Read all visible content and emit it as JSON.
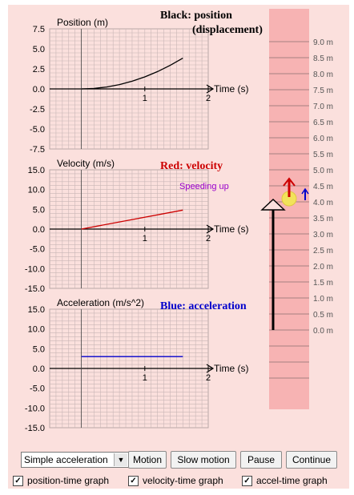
{
  "graphs": {
    "position": {
      "title": "Position (m)",
      "y_ticks": [
        "7.5",
        "5.0",
        "2.5",
        "0.0",
        "-2.5",
        "-5.0",
        "-7.5"
      ],
      "x_label": "Time (s)",
      "x_ticks": [
        "1",
        "2"
      ],
      "legend": [
        "Black: position",
        "(displacement)"
      ],
      "legend_color": "#000000",
      "line_color": "#000000"
    },
    "velocity": {
      "title": "Velocity (m/s)",
      "y_ticks": [
        "15.0",
        "10.0",
        "5.0",
        "0.0",
        "-5.0",
        "-10.0",
        "-15.0"
      ],
      "x_label": "Time (s)",
      "x_ticks": [
        "1",
        "2"
      ],
      "legend": [
        "Red: velocity"
      ],
      "legend_color": "#cc0000",
      "line_color": "#cc0000",
      "status": "Speeding up",
      "status_color": "#9900cc"
    },
    "acceleration": {
      "title": "Acceleration (m/s^2)",
      "y_ticks": [
        "15.0",
        "10.0",
        "5.0",
        "0.0",
        "-5.0",
        "-10.0",
        "-15.0"
      ],
      "x_label": "Time (s)",
      "x_ticks": [
        "1",
        "2"
      ],
      "legend": [
        "Blue: acceleration"
      ],
      "legend_color": "#0000cc",
      "line_color": "#0000cc"
    }
  },
  "track": {
    "scale_labels": [
      "9.0 m",
      "8.5 m",
      "8.0 m",
      "7.5 m",
      "7.0 m",
      "6.5 m",
      "6.0 m",
      "5.5 m",
      "5.0 m",
      "4.5 m",
      "4.0 m",
      "3.5 m",
      "3.0 m",
      "2.5 m",
      "2.0 m",
      "1.5 m",
      "1.0 m",
      "0.5 m",
      "0.0 m"
    ],
    "ball_position_m": 4.2,
    "start_position_m": 0.0,
    "ball_color": "#f2e25a",
    "velocity_arrow_color": "#cc0000",
    "accel_arrow_color": "#0000cc"
  },
  "chart_data": [
    {
      "type": "line",
      "title": "Position (m)",
      "xlabel": "Time (s)",
      "ylabel": "Position (m)",
      "xlim": [
        -0.5,
        2.0
      ],
      "ylim": [
        -7.5,
        7.5
      ],
      "series": [
        {
          "x": [
            0.0,
            0.2,
            0.4,
            0.6,
            0.8,
            1.0,
            1.2,
            1.4,
            1.6
          ],
          "y": [
            0.0,
            0.06,
            0.24,
            0.54,
            0.96,
            1.5,
            2.16,
            2.94,
            3.84
          ]
        }
      ]
    },
    {
      "type": "line",
      "title": "Velocity (m/s)",
      "xlabel": "Time (s)",
      "ylabel": "Velocity (m/s)",
      "xlim": [
        -0.5,
        2.0
      ],
      "ylim": [
        -15,
        15
      ],
      "series": [
        {
          "x": [
            0.0,
            1.6
          ],
          "y": [
            0.0,
            4.8
          ]
        }
      ]
    },
    {
      "type": "line",
      "title": "Acceleration (m/s^2)",
      "xlabel": "Time (s)",
      "ylabel": "Acceleration (m/s^2)",
      "xlim": [
        -0.5,
        2.0
      ],
      "ylim": [
        -15,
        15
      ],
      "series": [
        {
          "x": [
            0.0,
            1.6
          ],
          "y": [
            3.0,
            3.0
          ]
        }
      ]
    }
  ],
  "controls": {
    "scenario_select": "Simple acceleration",
    "motion_label": "Motion",
    "slow_motion_label": "Slow motion",
    "pause_label": "Pause",
    "continue_label": "Continue",
    "check_position_label": "position-time graph",
    "check_velocity_label": "velocity-time graph",
    "check_accel_label": "accel-time graph",
    "check_position": true,
    "check_velocity": true,
    "check_accel": true
  }
}
